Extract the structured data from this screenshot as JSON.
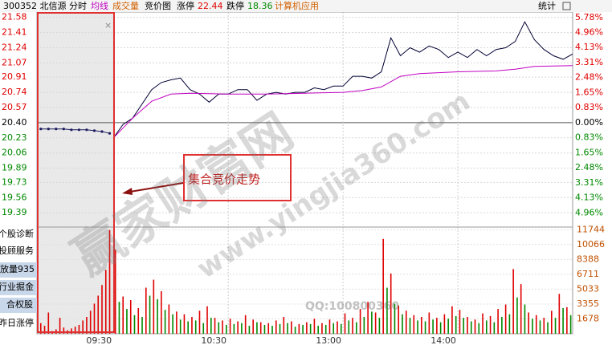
{
  "header": {
    "stock": "300352 北信源",
    "tabs": [
      "分时",
      "均线",
      "成交量",
      "竞价图"
    ],
    "limit_up_label": "涨停",
    "limit_up": "22.44",
    "limit_down_label": "跌停",
    "limit_down": "18.36",
    "industry": "计算机应用",
    "stats": "统计"
  },
  "side_menu": [
    "个股诊断",
    "投顾服务",
    "放量935",
    "行业掘金",
    "合权股",
    "昨日涨停"
  ],
  "annotation": "集合竞价走势",
  "watermarks": [
    "赢家财富网",
    "www.yingjia360.com",
    "QQ:100800360"
  ],
  "chart_data": [
    {
      "type": "line",
      "xlim": [
        -40,
        240
      ],
      "ylim": [
        19.23,
        21.64
      ],
      "y2lim": [
        -5.74,
        6.08
      ],
      "yticks": [
        21.58,
        21.41,
        21.24,
        21.07,
        20.91,
        20.74,
        20.57,
        {
          "value": 20.4,
          "label": "20.40"
        },
        20.23,
        20.06,
        19.89,
        19.73,
        19.56,
        19.39
      ],
      "y2ticks": [
        {
          "value": 5.78,
          "label": "5.78%"
        },
        {
          "value": 4.96,
          "label": "4.96%"
        },
        {
          "value": 4.13,
          "label": "4.13%"
        },
        {
          "value": 3.31,
          "label": "3.31%"
        },
        {
          "value": 2.48,
          "label": "2.48%"
        },
        {
          "value": 1.65,
          "label": "1.65%"
        },
        {
          "value": 0.83,
          "label": "0.83%"
        },
        {
          "value": 0,
          "label": "0.00%"
        },
        {
          "value": -0.83,
          "label": "0.83%"
        },
        {
          "value": -1.65,
          "label": "1.65%"
        },
        {
          "value": -2.48,
          "label": "2.48%"
        },
        {
          "value": -3.31,
          "label": "3.31%"
        },
        {
          "value": -4.13,
          "label": "4.13%"
        },
        {
          "value": -4.96,
          "label": "4.96%"
        }
      ],
      "series": [
        {
          "color": "#1a1a5e",
          "x": [
            -38,
            -34,
            -30,
            -26,
            -22,
            -18,
            -14,
            -10,
            -6,
            -2
          ],
          "values": [
            20.33,
            20.33,
            20.33,
            20.33,
            20.32,
            20.32,
            20.32,
            20.31,
            20.3,
            20.28
          ]
        },
        {
          "color": "#000033",
          "x": [
            0,
            5,
            10,
            15,
            20,
            25,
            30,
            35,
            40,
            45,
            50,
            55,
            60,
            65,
            70,
            75,
            80,
            85,
            90,
            95,
            100,
            105,
            110,
            115,
            120,
            125,
            130,
            135,
            140,
            145,
            150,
            155,
            160,
            165,
            170,
            175,
            180,
            185,
            190,
            195,
            200,
            205,
            210,
            215,
            220,
            225,
            230,
            235,
            240
          ],
          "values": [
            20.23,
            20.38,
            20.45,
            20.61,
            20.77,
            20.85,
            20.88,
            20.9,
            20.77,
            20.72,
            20.63,
            20.72,
            20.72,
            20.77,
            20.77,
            20.65,
            20.72,
            20.74,
            20.72,
            20.74,
            20.74,
            20.79,
            20.77,
            20.81,
            20.81,
            20.92,
            20.92,
            20.9,
            20.97,
            21.35,
            21.15,
            21.24,
            21.19,
            21.26,
            21.22,
            21.13,
            21.19,
            21.13,
            21.22,
            21.15,
            21.22,
            21.24,
            21.31,
            21.53,
            21.33,
            21.22,
            21.15,
            21.11,
            21.17
          ]
        },
        {
          "color": "#c000c0",
          "x": [
            0,
            10,
            20,
            30,
            40,
            60,
            80,
            100,
            120,
            130,
            140,
            150,
            160,
            180,
            200,
            210,
            220,
            240
          ],
          "values": [
            20.23,
            20.45,
            20.64,
            20.72,
            20.73,
            20.72,
            20.72,
            20.73,
            20.74,
            20.76,
            20.8,
            20.92,
            20.95,
            20.97,
            20.98,
            21.0,
            21.03,
            21.04
          ]
        }
      ]
    },
    {
      "type": "bar",
      "xlim": [
        -40,
        240
      ],
      "ylim": [
        0,
        12040
      ],
      "xticks": [
        {
          "value": 0,
          "label": "09:30"
        },
        {
          "value": 60,
          "label": "10:30"
        },
        {
          "value": 120,
          "label": "13:00"
        },
        {
          "value": 180,
          "label": "14:00"
        }
      ],
      "yticks": [
        11744,
        10066,
        8388,
        6711,
        5033,
        3355,
        1678
      ],
      "series": [
        {
          "color": "#e00000",
          "x": [
            -38,
            -36,
            -34,
            -32,
            -30,
            -28,
            -26,
            -24,
            -22,
            -20,
            -18,
            -16,
            -14,
            -12,
            -10,
            -8,
            -6,
            -4,
            -2
          ],
          "values": [
            1200,
            900,
            2400,
            300,
            500,
            1800,
            700,
            400,
            600,
            800,
            1000,
            1500,
            1900,
            2600,
            3400,
            4300,
            5500,
            7200,
            11700
          ]
        },
        {
          "color": "#e00000",
          "x": [
            1,
            5,
            9,
            13,
            17,
            21,
            25,
            29,
            33,
            37,
            41,
            45,
            49,
            53,
            57,
            61,
            65,
            69,
            73,
            77,
            81,
            85,
            89,
            93,
            97,
            101,
            105,
            109,
            113,
            117,
            121,
            125,
            129,
            133,
            137,
            141,
            145,
            149,
            153,
            157,
            161,
            165,
            169,
            173,
            177,
            181,
            185,
            189,
            193,
            197,
            201,
            205,
            209,
            213,
            217,
            221,
            225,
            229,
            233,
            237
          ],
          "values": [
            9500,
            4200,
            3800,
            2900,
            5200,
            6100,
            4800,
            3300,
            2500,
            2200,
            1900,
            2600,
            3100,
            1800,
            1500,
            1700,
            1400,
            2100,
            1600,
            1300,
            1200,
            1500,
            1900,
            1400,
            1100,
            1300,
            1700,
            1200,
            1600,
            1400,
            2300,
            1800,
            2800,
            3600,
            2400,
            10700,
            6800,
            3200,
            2600,
            2100,
            1900,
            2400,
            1800,
            2200,
            3100,
            2700,
            1900,
            1600,
            2300,
            2000,
            2800,
            3300,
            7300,
            5600,
            2400,
            2100,
            1800,
            2600,
            4500,
            3000
          ]
        },
        {
          "color": "#008800",
          "x": [
            3,
            7,
            11,
            15,
            19,
            23,
            27,
            31,
            35,
            39,
            43,
            47,
            51,
            55,
            59,
            63,
            67,
            71,
            75,
            79,
            83,
            87,
            91,
            95,
            99,
            103,
            107,
            111,
            115,
            119,
            123,
            127,
            131,
            135,
            139,
            143,
            147,
            151,
            155,
            159,
            163,
            167,
            171,
            175,
            179,
            183,
            187,
            191,
            195,
            199,
            203,
            207,
            211,
            215,
            219,
            223,
            227,
            231,
            235,
            239
          ],
          "values": [
            3600,
            2800,
            2100,
            1900,
            4300,
            3900,
            2700,
            2200,
            1600,
            1400,
            1500,
            1200,
            1800,
            1300,
            1000,
            1100,
            1200,
            900,
            1300,
            1000,
            900,
            1100,
            1200,
            800,
            1000,
            1100,
            900,
            1000,
            1200,
            1100,
            1500,
            1300,
            1900,
            2500,
            1800,
            5200,
            3400,
            2200,
            1800,
            1500,
            1400,
            1600,
            1300,
            1700,
            2000,
            1800,
            1400,
            1200,
            1500,
            1300,
            1900,
            2200,
            4100,
            3300,
            1700,
            1500,
            1300,
            1800,
            2900,
            2100
          ]
        }
      ]
    }
  ]
}
